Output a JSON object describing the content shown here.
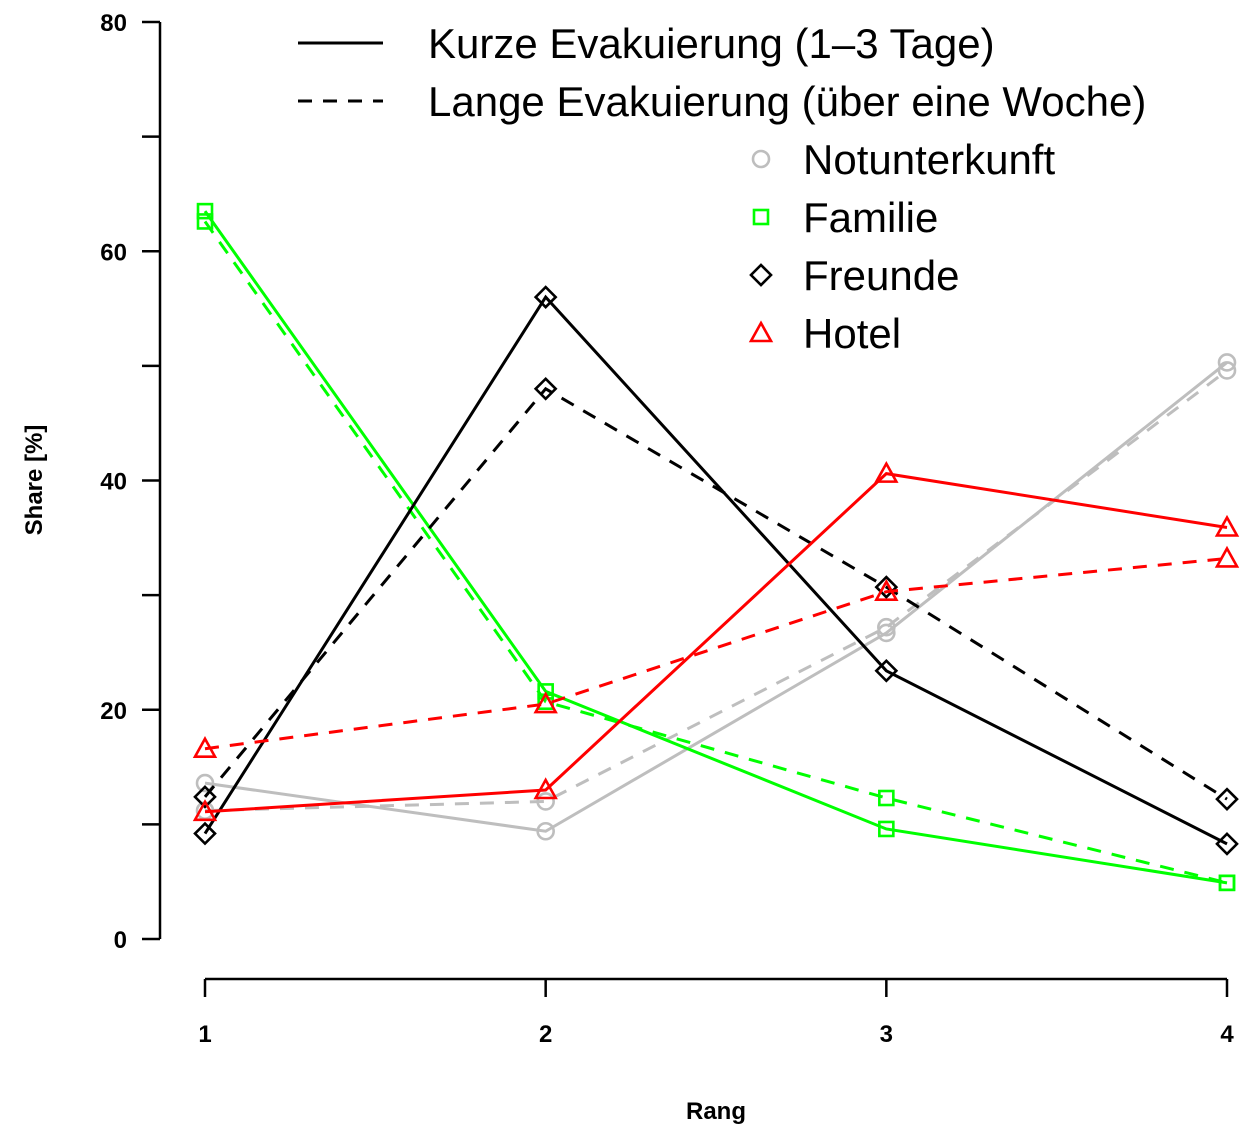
{
  "chart_data": {
    "type": "line",
    "title": "",
    "xlabel": "Rang",
    "ylabel": "Share [%]",
    "xlim": [
      1,
      4
    ],
    "ylim": [
      0,
      80
    ],
    "x_ticks": [
      "1",
      "2",
      "3",
      "4"
    ],
    "y_ticks": [
      "0",
      "20",
      "40",
      "60",
      "80"
    ],
    "grid": false,
    "legend_position": "top-right",
    "line_styles": [
      {
        "name": "Kurze Evakuierung (1–3 Tage)",
        "dash": "solid"
      },
      {
        "name": "Lange Evakuierung (über eine Woche)",
        "dash": "dashed"
      }
    ],
    "categories": [
      {
        "name": "Notunterkunft",
        "marker": "circle",
        "color": "#bebebe"
      },
      {
        "name": "Familie",
        "marker": "square",
        "color": "#00ff00"
      },
      {
        "name": "Freunde",
        "marker": "diamond",
        "color": "#000000"
      },
      {
        "name": "Hotel",
        "marker": "triangle",
        "color": "#ff0000"
      }
    ],
    "x": [
      1,
      2,
      3,
      4
    ],
    "series": [
      {
        "category": "Notunterkunft",
        "duration": "Kurze Evakuierung (1–3 Tage)",
        "dash": "solid",
        "values": [
          13.6,
          9.4,
          26.7,
          50.3
        ]
      },
      {
        "category": "Notunterkunft",
        "duration": "Lange Evakuierung (über eine Woche)",
        "dash": "dashed",
        "values": [
          11.2,
          12.0,
          27.2,
          49.6
        ]
      },
      {
        "category": "Familie",
        "duration": "Kurze Evakuierung (1–3 Tage)",
        "dash": "solid",
        "values": [
          63.5,
          21.6,
          9.6,
          4.9
        ]
      },
      {
        "category": "Familie",
        "duration": "Lange Evakuierung (über eine Woche)",
        "dash": "dashed",
        "values": [
          62.6,
          20.7,
          12.3,
          4.9
        ]
      },
      {
        "category": "Freunde",
        "duration": "Kurze Evakuierung (1–3 Tage)",
        "dash": "solid",
        "values": [
          9.2,
          56.0,
          23.4,
          8.3
        ]
      },
      {
        "category": "Freunde",
        "duration": "Lange Evakuierung (über eine Woche)",
        "dash": "dashed",
        "values": [
          12.4,
          48.0,
          30.7,
          12.2
        ]
      },
      {
        "category": "Hotel",
        "duration": "Kurze Evakuierung (1–3 Tage)",
        "dash": "solid",
        "values": [
          11.1,
          13.0,
          40.6,
          35.9
        ]
      },
      {
        "category": "Hotel",
        "duration": "Lange Evakuierung (über eine Woche)",
        "dash": "dashed",
        "values": [
          16.6,
          20.5,
          30.3,
          33.2
        ]
      }
    ]
  }
}
